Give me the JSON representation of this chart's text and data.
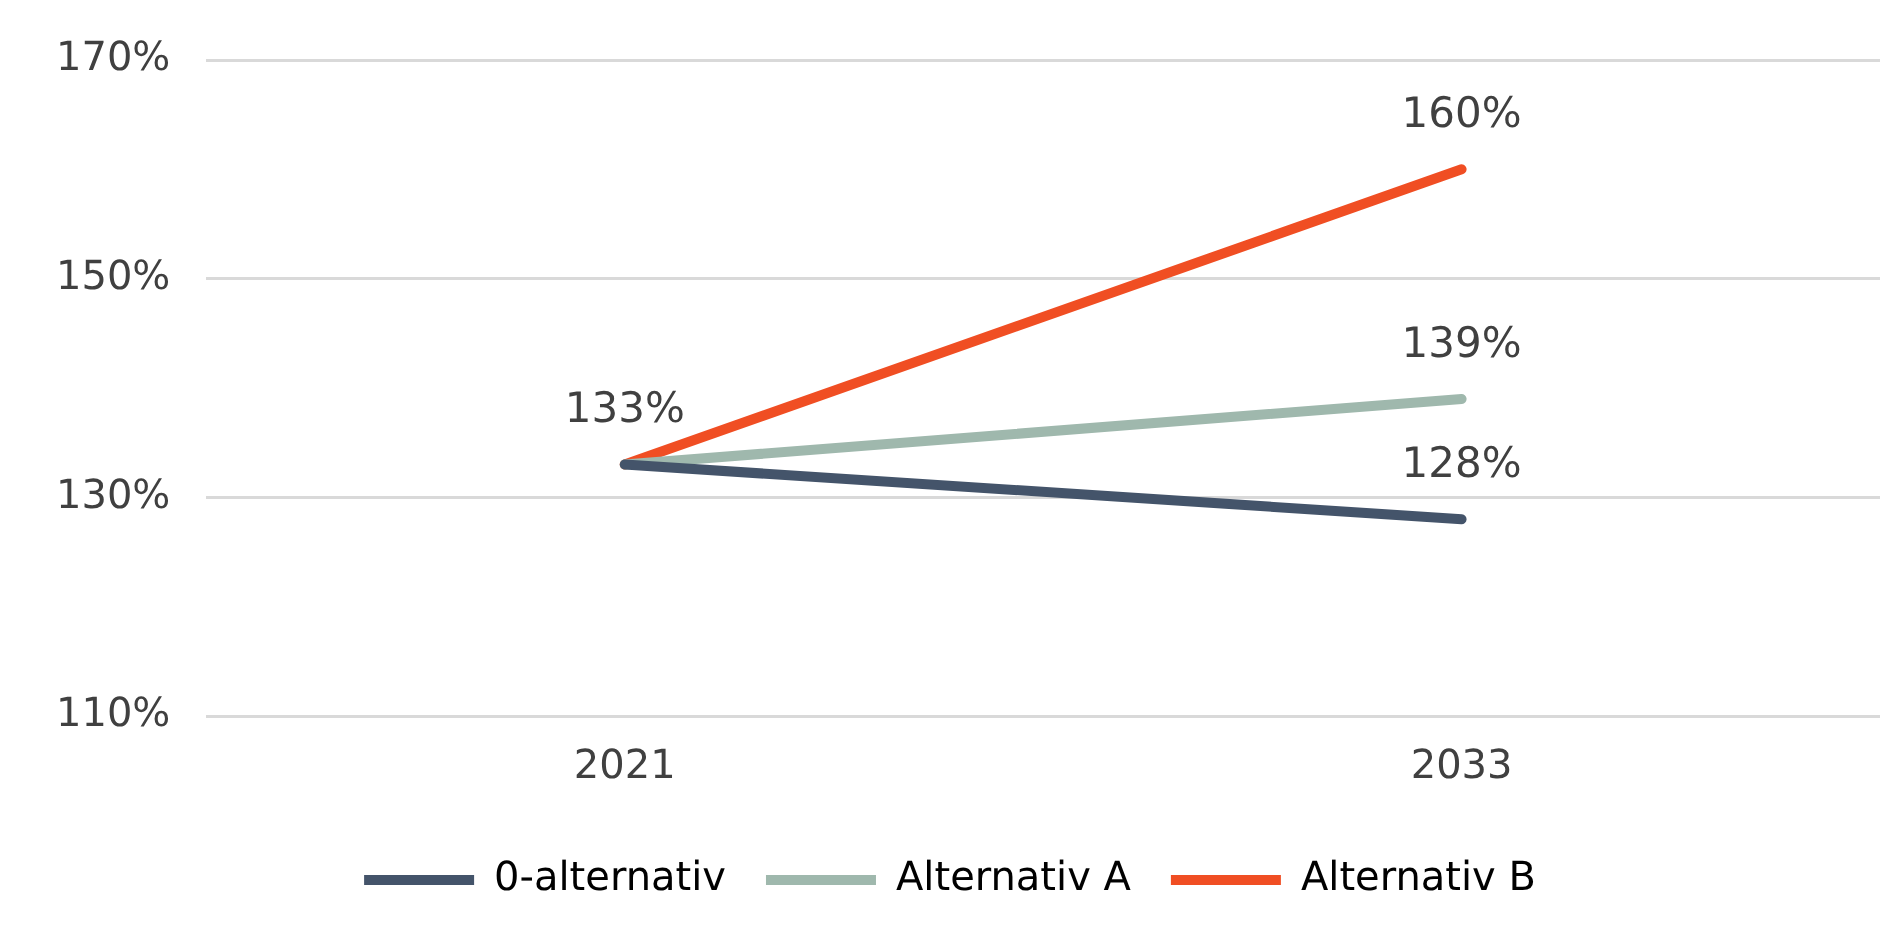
{
  "chart_data": {
    "type": "line",
    "categories": [
      "2021",
      "2033"
    ],
    "series": [
      {
        "name": "0-alternativ",
        "color": "#44546a",
        "values": [
          133,
          128
        ],
        "value_labels": [
          null,
          "128%"
        ]
      },
      {
        "name": "Alternativ A",
        "color": "#9fb8ad",
        "values": [
          133,
          139
        ],
        "value_labels": [
          null,
          "139%"
        ]
      },
      {
        "name": "Alternativ B",
        "color": "#f04e23",
        "values": [
          133,
          160
        ],
        "value_labels": [
          "133%",
          "160%"
        ]
      }
    ],
    "ylim": [
      110,
      170
    ],
    "yticks": [
      {
        "value": 110,
        "label": "110%"
      },
      {
        "value": 130,
        "label": "130%"
      },
      {
        "value": 150,
        "label": "150%"
      },
      {
        "value": 170,
        "label": "170%"
      }
    ],
    "grid": "y",
    "legend": "bottom",
    "marker": "none",
    "line_style": "solid"
  }
}
